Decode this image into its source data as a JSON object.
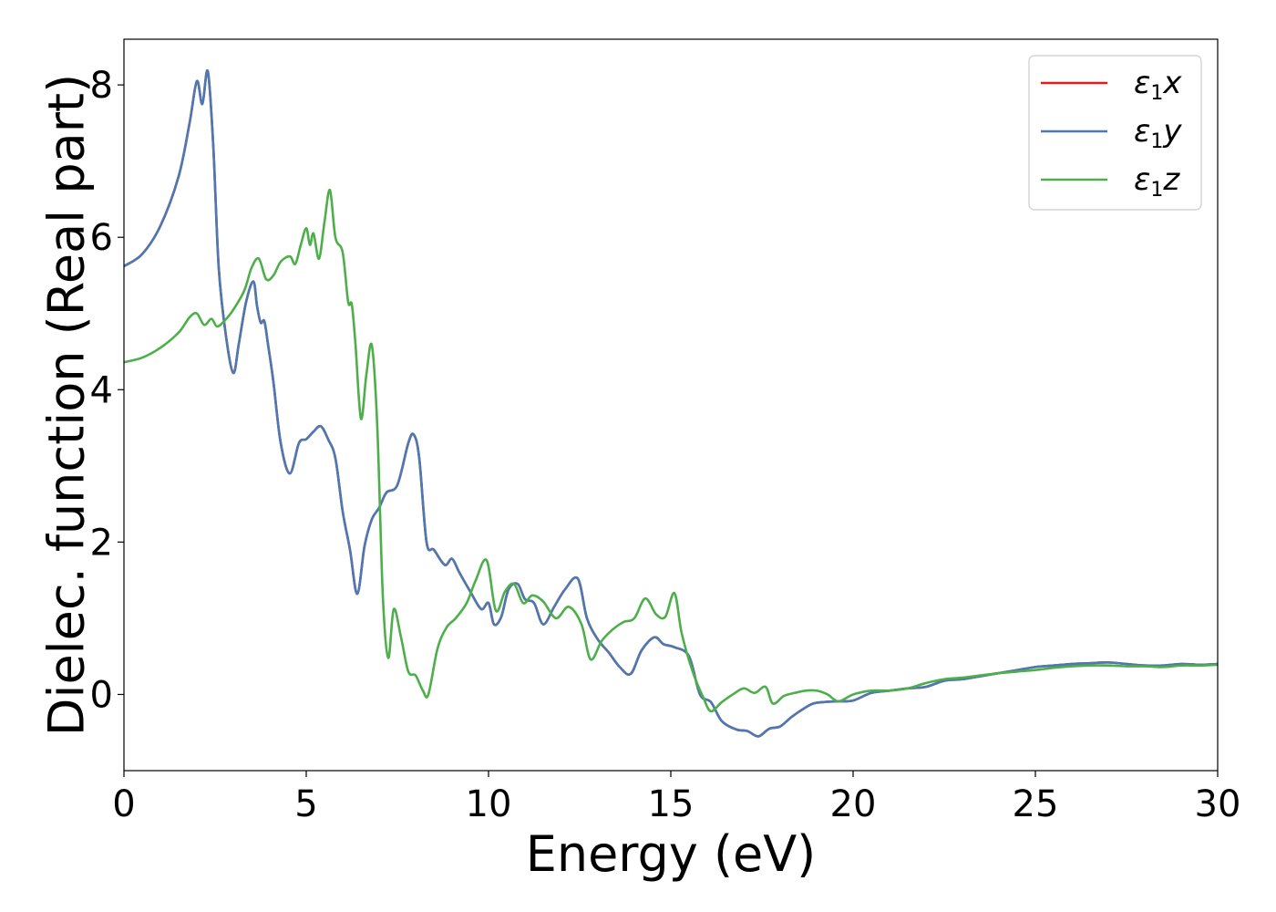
{
  "chart_data": {
    "type": "line",
    "xlabel": "Energy (eV)",
    "ylabel": "Dielec. function (Real part)",
    "xlim": [
      0,
      30
    ],
    "ylim": [
      -1.0,
      8.6
    ],
    "xticks": [
      0,
      5,
      10,
      15,
      20,
      25,
      30
    ],
    "yticks": [
      0,
      2,
      4,
      6,
      8
    ],
    "grid": false,
    "legend_position": "top-right",
    "series": [
      {
        "name": "ε1x",
        "symbol": "ε",
        "sub": "1",
        "axis": "x",
        "color": "#e41a1c",
        "x": [
          0,
          0.5,
          1,
          1.5,
          1.8,
          2,
          2.15,
          2.3,
          2.45,
          2.6,
          2.8,
          3.0,
          3.15,
          3.35,
          3.55,
          3.65,
          3.75,
          3.85,
          3.95,
          4.1,
          4.3,
          4.55,
          4.8,
          5.0,
          5.2,
          5.4,
          5.6,
          5.8,
          6.0,
          6.2,
          6.4,
          6.6,
          6.8,
          7.0,
          7.2,
          7.5,
          7.8,
          7.95,
          8.1,
          8.3,
          8.5,
          8.8,
          9.0,
          9.2,
          9.5,
          9.8,
          10.0,
          10.15,
          10.35,
          10.55,
          10.8,
          11.0,
          11.25,
          11.5,
          11.8,
          12.1,
          12.45,
          12.7,
          13.0,
          13.3,
          13.6,
          13.9,
          14.2,
          14.55,
          14.8,
          15.1,
          15.5,
          15.8,
          16.1,
          16.4,
          16.8,
          17.1,
          17.4,
          17.7,
          18.0,
          18.3,
          18.6,
          18.9,
          19.2,
          19.6,
          20.0,
          20.5,
          21.0,
          21.5,
          22.0,
          22.5,
          23.0,
          23.5,
          24.0,
          24.5,
          25.0,
          25.5,
          26.0,
          26.5,
          27.0,
          27.5,
          28.0,
          28.5,
          29.0,
          29.5,
          30.0
        ],
        "y": [
          5.62,
          5.78,
          6.15,
          6.8,
          7.5,
          8.05,
          7.75,
          8.18,
          7.2,
          5.6,
          4.7,
          4.22,
          4.6,
          5.15,
          5.42,
          5.1,
          4.88,
          4.9,
          4.6,
          4.1,
          3.3,
          2.9,
          3.3,
          3.35,
          3.45,
          3.52,
          3.35,
          3.1,
          2.4,
          1.9,
          1.32,
          1.95,
          2.3,
          2.45,
          2.65,
          2.75,
          3.3,
          3.41,
          3.1,
          2.0,
          1.9,
          1.7,
          1.78,
          1.6,
          1.35,
          1.12,
          1.2,
          0.92,
          1.02,
          1.38,
          1.45,
          1.25,
          1.2,
          0.92,
          1.15,
          1.38,
          1.52,
          1.0,
          0.72,
          0.55,
          0.36,
          0.27,
          0.58,
          0.75,
          0.66,
          0.62,
          0.5,
          0.0,
          -0.1,
          -0.35,
          -0.46,
          -0.48,
          -0.55,
          -0.45,
          -0.42,
          -0.3,
          -0.2,
          -0.12,
          -0.1,
          -0.09,
          -0.08,
          0.02,
          0.05,
          0.08,
          0.1,
          0.18,
          0.2,
          0.24,
          0.28,
          0.32,
          0.36,
          0.38,
          0.4,
          0.41,
          0.42,
          0.4,
          0.38,
          0.38,
          0.4,
          0.39,
          0.4
        ]
      },
      {
        "name": "ε1y",
        "symbol": "ε",
        "sub": "1",
        "axis": "y",
        "color": "#4a79b3",
        "x": [
          0,
          0.5,
          1,
          1.5,
          1.8,
          2,
          2.15,
          2.3,
          2.45,
          2.6,
          2.8,
          3.0,
          3.15,
          3.35,
          3.55,
          3.65,
          3.75,
          3.85,
          3.95,
          4.1,
          4.3,
          4.55,
          4.8,
          5.0,
          5.2,
          5.4,
          5.6,
          5.8,
          6.0,
          6.2,
          6.4,
          6.6,
          6.8,
          7.0,
          7.2,
          7.5,
          7.8,
          7.95,
          8.1,
          8.3,
          8.5,
          8.8,
          9.0,
          9.2,
          9.5,
          9.8,
          10.0,
          10.15,
          10.35,
          10.55,
          10.8,
          11.0,
          11.25,
          11.5,
          11.8,
          12.1,
          12.45,
          12.7,
          13.0,
          13.3,
          13.6,
          13.9,
          14.2,
          14.55,
          14.8,
          15.1,
          15.5,
          15.8,
          16.1,
          16.4,
          16.8,
          17.1,
          17.4,
          17.7,
          18.0,
          18.3,
          18.6,
          18.9,
          19.2,
          19.6,
          20.0,
          20.5,
          21.0,
          21.5,
          22.0,
          22.5,
          23.0,
          23.5,
          24.0,
          24.5,
          25.0,
          25.5,
          26.0,
          26.5,
          27.0,
          27.5,
          28.0,
          28.5,
          29.0,
          29.5,
          30.0
        ],
        "y": [
          5.62,
          5.78,
          6.15,
          6.8,
          7.5,
          8.05,
          7.75,
          8.18,
          7.2,
          5.6,
          4.7,
          4.22,
          4.6,
          5.15,
          5.42,
          5.1,
          4.88,
          4.9,
          4.6,
          4.1,
          3.3,
          2.9,
          3.3,
          3.35,
          3.45,
          3.52,
          3.35,
          3.1,
          2.4,
          1.9,
          1.32,
          1.95,
          2.3,
          2.45,
          2.65,
          2.75,
          3.3,
          3.41,
          3.1,
          2.0,
          1.9,
          1.7,
          1.78,
          1.6,
          1.35,
          1.12,
          1.2,
          0.92,
          1.02,
          1.38,
          1.45,
          1.25,
          1.2,
          0.92,
          1.15,
          1.38,
          1.52,
          1.0,
          0.72,
          0.55,
          0.36,
          0.27,
          0.58,
          0.75,
          0.66,
          0.62,
          0.5,
          0.0,
          -0.1,
          -0.35,
          -0.46,
          -0.48,
          -0.55,
          -0.45,
          -0.42,
          -0.3,
          -0.2,
          -0.12,
          -0.1,
          -0.09,
          -0.08,
          0.02,
          0.05,
          0.08,
          0.1,
          0.18,
          0.2,
          0.24,
          0.28,
          0.32,
          0.36,
          0.38,
          0.4,
          0.41,
          0.42,
          0.4,
          0.38,
          0.38,
          0.4,
          0.39,
          0.4
        ]
      },
      {
        "name": "ε1z",
        "symbol": "ε",
        "sub": "1",
        "axis": "z",
        "color": "#4daf4a",
        "x": [
          0,
          0.5,
          1,
          1.5,
          1.8,
          2.0,
          2.2,
          2.4,
          2.55,
          2.75,
          3.0,
          3.3,
          3.5,
          3.7,
          3.9,
          4.1,
          4.3,
          4.55,
          4.7,
          4.85,
          5.0,
          5.1,
          5.2,
          5.35,
          5.5,
          5.65,
          5.8,
          6.0,
          6.15,
          6.25,
          6.35,
          6.5,
          6.65,
          6.8,
          6.95,
          7.1,
          7.25,
          7.4,
          7.6,
          7.8,
          8.0,
          8.2,
          8.35,
          8.6,
          8.85,
          9.1,
          9.4,
          9.65,
          9.95,
          10.2,
          10.45,
          10.7,
          10.95,
          11.2,
          11.5,
          11.85,
          12.2,
          12.55,
          12.8,
          13.1,
          13.4,
          13.7,
          14.0,
          14.3,
          14.6,
          14.85,
          15.1,
          15.3,
          15.6,
          15.9,
          16.1,
          16.4,
          16.7,
          17.0,
          17.3,
          17.6,
          17.8,
          18.1,
          18.4,
          18.7,
          19.0,
          19.3,
          19.6,
          20.0,
          20.5,
          21.0,
          21.5,
          22.0,
          22.5,
          23.0,
          23.5,
          24.0,
          24.5,
          25.0,
          25.5,
          26.0,
          26.5,
          27.0,
          27.5,
          28.0,
          28.5,
          29.0,
          29.5,
          30.0
        ],
        "y": [
          4.36,
          4.42,
          4.55,
          4.75,
          4.95,
          5.0,
          4.85,
          4.93,
          4.83,
          4.9,
          5.05,
          5.3,
          5.6,
          5.72,
          5.45,
          5.5,
          5.68,
          5.75,
          5.65,
          5.9,
          6.12,
          5.9,
          6.05,
          5.72,
          6.2,
          6.62,
          6.0,
          5.8,
          5.15,
          5.12,
          4.6,
          3.62,
          4.2,
          4.58,
          3.5,
          1.3,
          0.48,
          1.12,
          0.75,
          0.3,
          0.25,
          0.05,
          0.0,
          0.6,
          0.88,
          1.0,
          1.2,
          1.5,
          1.76,
          1.1,
          1.35,
          1.45,
          1.2,
          1.3,
          1.22,
          1.0,
          1.15,
          0.92,
          0.46,
          0.7,
          0.85,
          0.95,
          1.0,
          1.26,
          1.05,
          1.02,
          1.33,
          0.8,
          0.3,
          -0.05,
          -0.22,
          -0.1,
          0.0,
          0.08,
          0.02,
          0.1,
          -0.12,
          -0.02,
          0.02,
          0.05,
          0.05,
          0.0,
          -0.09,
          0.0,
          0.05,
          0.05,
          0.08,
          0.15,
          0.2,
          0.22,
          0.25,
          0.28,
          0.3,
          0.32,
          0.35,
          0.37,
          0.38,
          0.38,
          0.37,
          0.37,
          0.36,
          0.38,
          0.38,
          0.39
        ]
      }
    ]
  }
}
